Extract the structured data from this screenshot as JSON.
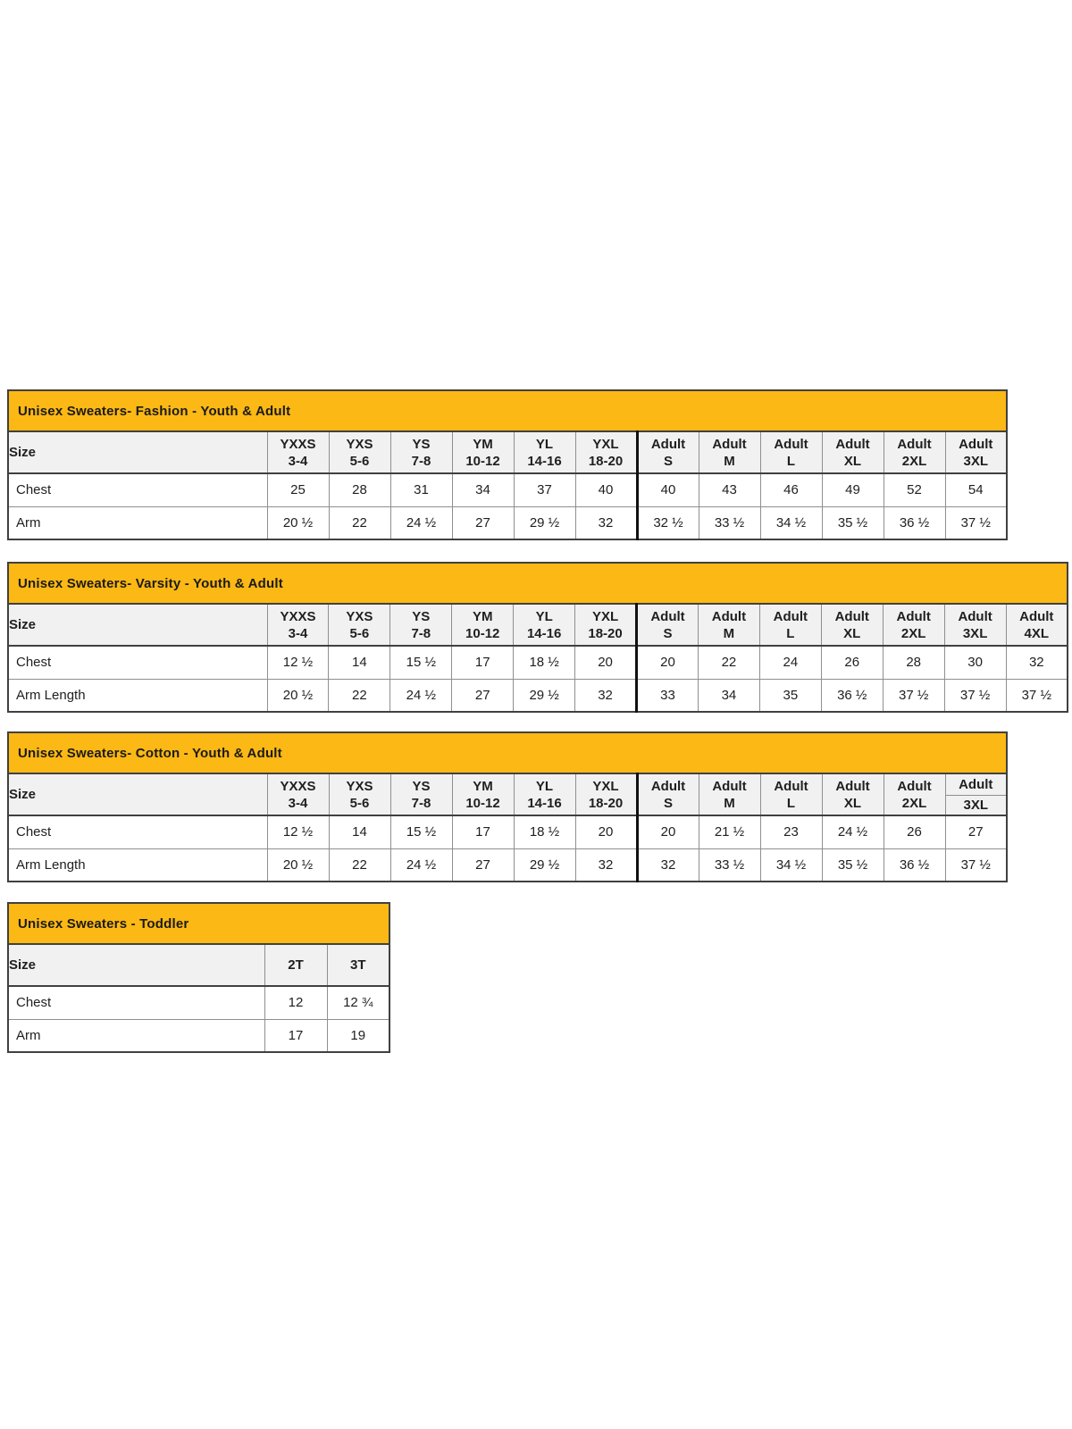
{
  "colors": {
    "title_bar_bg": "#FCB814",
    "header_row_bg": "#F1F1F1",
    "outer_border": "#404040",
    "inner_border": "#8F8F8F",
    "youth_adult_divider": "#111111"
  },
  "tables": [
    {
      "id": "fashion",
      "title": "Unisex Sweaters- Fashion - Youth & Adult",
      "size_label": "Size",
      "adult_start_index": 6,
      "columns": [
        {
          "line1": "YXXS",
          "line2": "3-4"
        },
        {
          "line1": "YXS",
          "line2": "5-6"
        },
        {
          "line1": "YS",
          "line2": "7-8"
        },
        {
          "line1": "YM",
          "line2": "10-12"
        },
        {
          "line1": "YL",
          "line2": "14-16"
        },
        {
          "line1": "YXL",
          "line2": "18-20"
        },
        {
          "line1": "Adult",
          "line2": "S"
        },
        {
          "line1": "Adult",
          "line2": "M"
        },
        {
          "line1": "Adult",
          "line2": "L"
        },
        {
          "line1": "Adult",
          "line2": "XL"
        },
        {
          "line1": "Adult",
          "line2": "2XL"
        },
        {
          "line1": "Adult",
          "line2": "3XL"
        }
      ],
      "rows": [
        {
          "label": "Chest",
          "values": [
            "25",
            "28",
            "31",
            "34",
            "37",
            "40",
            "40",
            "43",
            "46",
            "49",
            "52",
            "54"
          ]
        },
        {
          "label": "Arm",
          "values": [
            "20 ½",
            "22",
            "24 ½",
            "27",
            "29 ½",
            "32",
            "32 ½",
            "33 ½",
            "34 ½",
            "35 ½",
            "36 ½",
            "37 ½"
          ]
        }
      ]
    },
    {
      "id": "varsity",
      "title": "Unisex Sweaters- Varsity - Youth & Adult",
      "size_label": "Size",
      "adult_start_index": 6,
      "columns": [
        {
          "line1": "YXXS",
          "line2": "3-4"
        },
        {
          "line1": "YXS",
          "line2": "5-6"
        },
        {
          "line1": "YS",
          "line2": "7-8"
        },
        {
          "line1": "YM",
          "line2": "10-12"
        },
        {
          "line1": "YL",
          "line2": "14-16"
        },
        {
          "line1": "YXL",
          "line2": "18-20"
        },
        {
          "line1": "Adult",
          "line2": "S"
        },
        {
          "line1": "Adult",
          "line2": "M"
        },
        {
          "line1": "Adult",
          "line2": "L"
        },
        {
          "line1": "Adult",
          "line2": "XL"
        },
        {
          "line1": "Adult",
          "line2": "2XL"
        },
        {
          "line1": "Adult",
          "line2": "3XL"
        },
        {
          "line1": "Adult",
          "line2": "4XL"
        }
      ],
      "rows": [
        {
          "label": "Chest",
          "values": [
            "12 ½",
            "14",
            "15 ½",
            "17",
            "18 ½",
            "20",
            "20",
            "22",
            "24",
            "26",
            "28",
            "30",
            "32"
          ]
        },
        {
          "label": "Arm Length",
          "values": [
            "20 ½",
            "22",
            "24 ½",
            "27",
            "29 ½",
            "32",
            "33",
            "34",
            "35",
            "36 ½",
            "37 ½",
            "37 ½",
            "37 ½"
          ]
        }
      ]
    },
    {
      "id": "cotton",
      "title": "Unisex Sweaters- Cotton - Youth & Adult",
      "size_label": "Size",
      "adult_start_index": 6,
      "columns": [
        {
          "line1": "YXXS",
          "line2": "3-4"
        },
        {
          "line1": "YXS",
          "line2": "5-6"
        },
        {
          "line1": "YS",
          "line2": "7-8"
        },
        {
          "line1": "YM",
          "line2": "10-12"
        },
        {
          "line1": "YL",
          "line2": "14-16"
        },
        {
          "line1": "YXL",
          "line2": "18-20"
        },
        {
          "line1": "Adult",
          "line2": "S"
        },
        {
          "line1": "Adult",
          "line2": "M"
        },
        {
          "line1": "Adult",
          "line2": "L"
        },
        {
          "line1": "Adult",
          "line2": "XL"
        },
        {
          "line1": "Adult",
          "line2": "2XL"
        },
        {
          "line1": "Adult",
          "line2": "3XL",
          "divided": true
        }
      ],
      "rows": [
        {
          "label": "Chest",
          "values": [
            "12 ½",
            "14",
            "15 ½",
            "17",
            "18 ½",
            "20",
            "20",
            "21 ½",
            "23",
            "24 ½",
            "26",
            "27"
          ]
        },
        {
          "label": "Arm Length",
          "values": [
            "20 ½",
            "22",
            "24 ½",
            "27",
            "29 ½",
            "32",
            "32",
            "33 ½",
            "34 ½",
            "35 ½",
            "36 ½",
            "37 ½"
          ]
        }
      ]
    },
    {
      "id": "toddler",
      "title": "Unisex Sweaters - Toddler",
      "size_label": "Size",
      "columns": [
        {
          "line1": "2T"
        },
        {
          "line1": "3T"
        }
      ],
      "rows": [
        {
          "label": "Chest",
          "values": [
            "12",
            "12 ¾"
          ]
        },
        {
          "label": "Arm",
          "values": [
            "17",
            "19"
          ]
        }
      ]
    }
  ]
}
